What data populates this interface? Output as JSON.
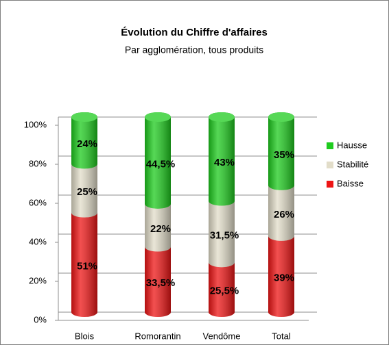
{
  "chart_data": {
    "type": "bar",
    "stacked": true,
    "title": "Évolution du Chiffre d'affaires",
    "subtitle": "Par agglomération, tous produits",
    "categories": [
      "Blois",
      "Romorantin",
      "Vendôme",
      "Total"
    ],
    "series": [
      {
        "name": "Baisse",
        "color": "#ee1515",
        "values": [
          51,
          33.5,
          25.5,
          39
        ],
        "value_labels": [
          "51%",
          "33,5%",
          "25,5%",
          "39%"
        ]
      },
      {
        "name": "Stabilité",
        "color": "#e2ddc9",
        "values": [
          25,
          22,
          31.5,
          26
        ],
        "value_labels": [
          "25%",
          "22%",
          "31,5%",
          "26%"
        ]
      },
      {
        "name": "Hausse",
        "color": "#1ecb1e",
        "values": [
          24,
          44.5,
          43,
          35
        ],
        "value_labels": [
          "24%",
          "44,5%",
          "43%",
          "35%"
        ]
      }
    ],
    "ylim": [
      0,
      100
    ],
    "yticks": [
      {
        "value": 0,
        "label": "0%"
      },
      {
        "value": 20,
        "label": "20%"
      },
      {
        "value": 40,
        "label": "40%"
      },
      {
        "value": 60,
        "label": "60%"
      },
      {
        "value": 80,
        "label": "80%"
      },
      {
        "value": 100,
        "label": "100%"
      }
    ],
    "grid": true,
    "legend": "right"
  }
}
